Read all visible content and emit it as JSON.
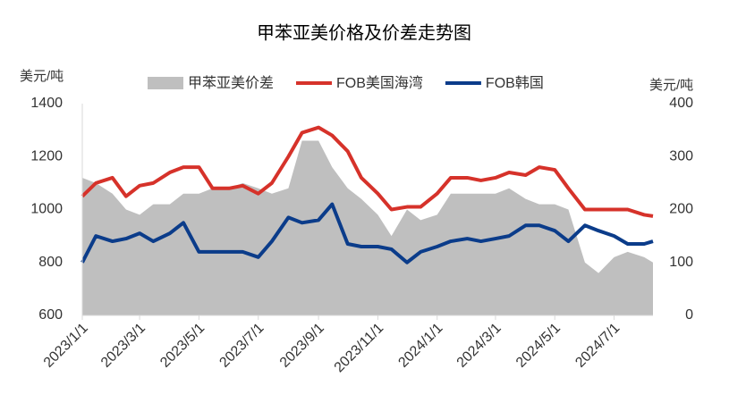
{
  "chart_data": {
    "type": "line",
    "title": "甲苯亚美价格及价差走势图",
    "ylabel": "美元/吨",
    "y2label": "美元/吨",
    "x": [
      "2023/1/1",
      "2023/1/15",
      "2023/2/1",
      "2023/2/15",
      "2023/3/1",
      "2023/3/15",
      "2023/4/1",
      "2023/4/15",
      "2023/5/1",
      "2023/5/15",
      "2023/6/1",
      "2023/6/15",
      "2023/7/1",
      "2023/7/15",
      "2023/8/1",
      "2023/8/15",
      "2023/9/1",
      "2023/9/15",
      "2023/10/1",
      "2023/10/15",
      "2023/11/1",
      "2023/11/15",
      "2023/12/1",
      "2023/12/15",
      "2024/1/1",
      "2024/1/15",
      "2024/2/1",
      "2024/2/15",
      "2024/3/1",
      "2024/3/15",
      "2024/4/1",
      "2024/4/15",
      "2024/5/1",
      "2024/5/15",
      "2024/6/1",
      "2024/6/15",
      "2024/7/1",
      "2024/7/15",
      "2024/8/1",
      "2024/8/10"
    ],
    "xlim": [
      "2023/1/1",
      "2024/8/10"
    ],
    "xticks": [
      "2023/1/1",
      "2023/3/1",
      "2023/5/1",
      "2023/7/1",
      "2023/9/1",
      "2023/11/1",
      "2024/1/1",
      "2024/3/1",
      "2024/5/1",
      "2024/7/1"
    ],
    "ylim": [
      600,
      1400
    ],
    "yticks": [
      600,
      800,
      1000,
      1200,
      1400
    ],
    "y2lim": [
      0,
      400
    ],
    "y2ticks": [
      0,
      100,
      200,
      300,
      400
    ],
    "legend": "top",
    "series": [
      {
        "name": "甲苯亚美价差",
        "type": "area",
        "axis": "y2",
        "color": "#bfbfbf",
        "values": [
          260,
          250,
          230,
          200,
          190,
          210,
          210,
          230,
          230,
          240,
          240,
          250,
          240,
          230,
          240,
          330,
          330,
          280,
          240,
          220,
          190,
          150,
          200,
          180,
          190,
          230,
          230,
          230,
          230,
          240,
          220,
          210,
          210,
          200,
          100,
          80,
          110,
          120,
          110,
          100
        ]
      },
      {
        "name": "FOB美国海湾",
        "color": "#d6322a",
        "values": [
          1050,
          1100,
          1120,
          1050,
          1090,
          1100,
          1140,
          1160,
          1160,
          1080,
          1080,
          1090,
          1060,
          1100,
          1200,
          1290,
          1310,
          1280,
          1220,
          1120,
          1060,
          1000,
          1010,
          1010,
          1060,
          1120,
          1120,
          1110,
          1120,
          1140,
          1130,
          1160,
          1150,
          1080,
          1000,
          1000,
          1000,
          1000,
          980,
          975
        ]
      },
      {
        "name": "FOB韩国",
        "color": "#0b3c8a",
        "values": [
          800,
          900,
          880,
          890,
          910,
          880,
          910,
          950,
          840,
          840,
          840,
          840,
          820,
          880,
          970,
          950,
          960,
          1020,
          870,
          860,
          860,
          850,
          800,
          840,
          860,
          880,
          890,
          880,
          890,
          900,
          940,
          940,
          920,
          880,
          940,
          920,
          900,
          870,
          870,
          880
        ]
      }
    ]
  }
}
